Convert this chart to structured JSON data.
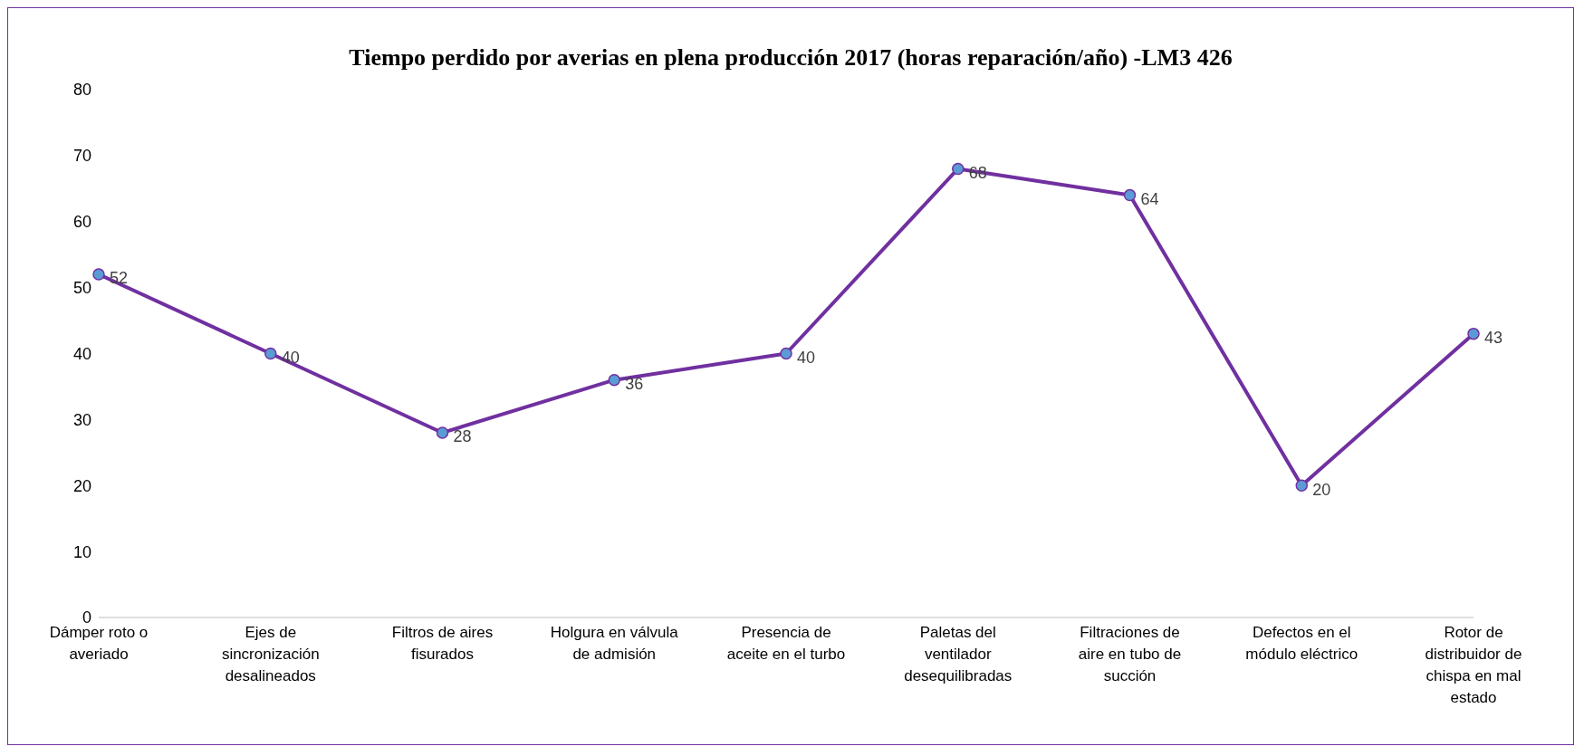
{
  "chart_data": {
    "type": "line",
    "title": "Tiempo perdido por averias en plena producción 2017 (horas reparación/año) -LM3 426",
    "categories": [
      "Dámper roto o averiado",
      "Ejes de sincronización desalineados",
      "Filtros de aires fisurados",
      "Holgura en válvula de admisión",
      "Presencia de aceite en el turbo",
      "Paletas del ventilador desequilibradas",
      "Filtraciones de aire en tubo de succión",
      "Defectos en el módulo eléctrico",
      "Rotor de distribuidor de chispa en mal estado"
    ],
    "series": [
      {
        "color": "#7030a0",
        "values": [
          52,
          40,
          28,
          36,
          40,
          68,
          64,
          20,
          43
        ]
      }
    ],
    "ylim": [
      0,
      80
    ],
    "yticks": [
      0,
      10,
      20,
      30,
      40,
      50,
      60,
      70,
      80
    ],
    "data_labels": true,
    "marker": "circle",
    "line_style": "solid"
  }
}
